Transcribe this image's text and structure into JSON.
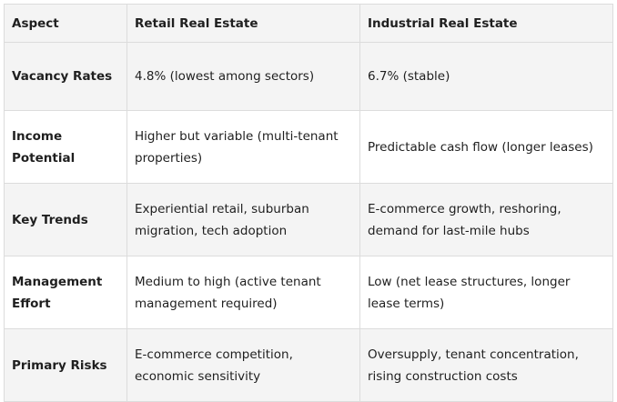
{
  "table": {
    "headers": [
      "Aspect",
      "Retail Real Estate",
      "Industrial Real Estate"
    ],
    "rows": [
      {
        "aspect": "Vacancy Rates",
        "retail": "4.8% (lowest among sectors)",
        "industrial": "6.7% (stable)"
      },
      {
        "aspect": "Income Potential",
        "retail": "Higher but variable (multi-tenant properties)",
        "industrial": "Predictable cash flow (longer leases)"
      },
      {
        "aspect": "Key Trends",
        "retail": "Experiential retail, suburban migration, tech adoption",
        "industrial": "E-commerce growth, reshoring, demand for last-mile hubs"
      },
      {
        "aspect": "Management Effort",
        "retail": "Medium to high (active tenant management required)",
        "industrial": "Low (net lease structures, longer lease terms)"
      },
      {
        "aspect": "Primary Risks",
        "retail": "E-commerce competition, economic sensitivity",
        "industrial": "Oversupply, tenant concentration, rising construction costs"
      }
    ]
  }
}
